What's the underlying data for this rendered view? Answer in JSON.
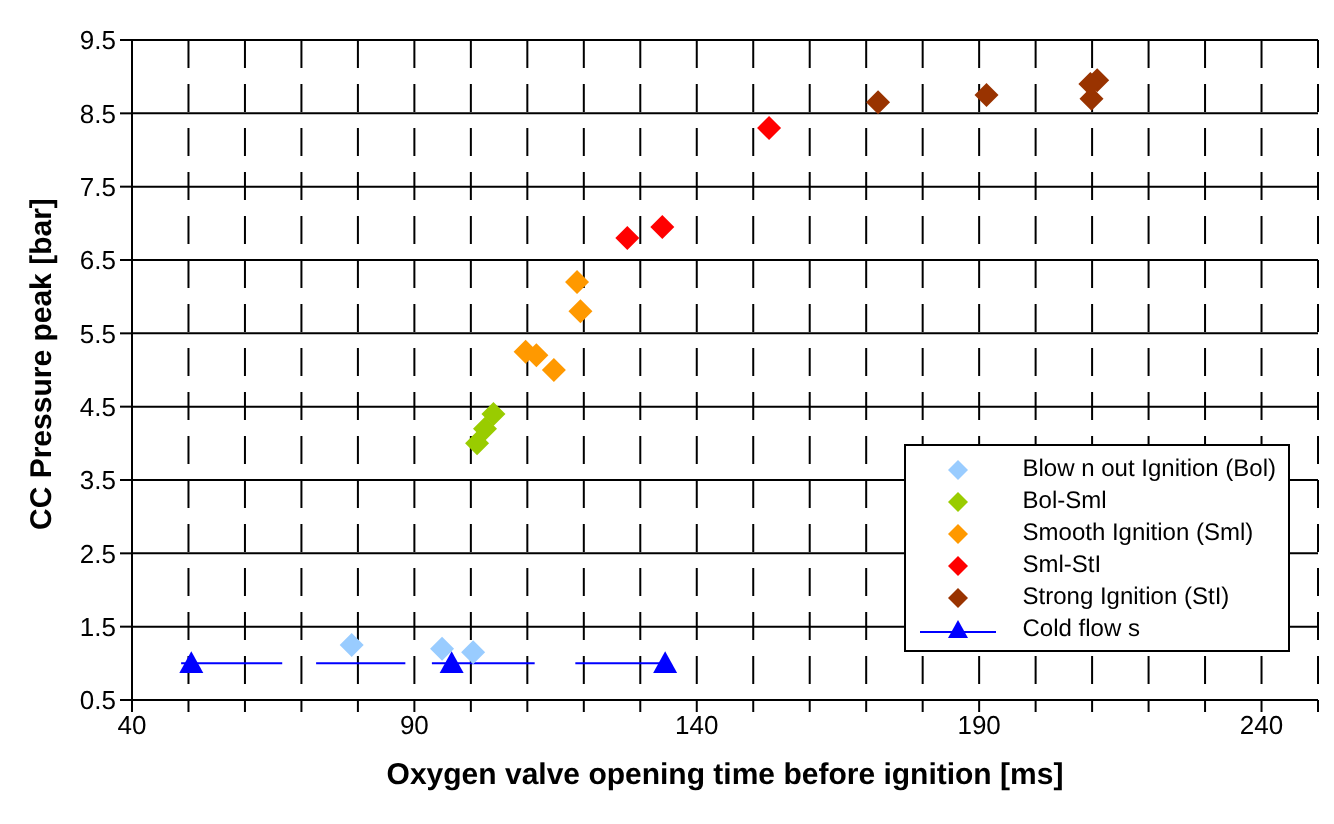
{
  "chart_data": {
    "type": "scatter",
    "xlabel": "Oxygen valve opening time before ignition [ms]",
    "ylabel": "CC Pressure peak [bar]",
    "xlim": [
      40,
      250
    ],
    "xticks": [
      40,
      {
        "value": 50,
        "label": null
      },
      {
        "value": 60,
        "label": null
      },
      {
        "value": 70,
        "label": null
      },
      {
        "value": 80,
        "label": null
      },
      90,
      {
        "value": 100,
        "label": null
      },
      {
        "value": 110,
        "label": null
      },
      {
        "value": 120,
        "label": null
      },
      {
        "value": 130,
        "label": null
      },
      140,
      {
        "value": 150,
        "label": null
      },
      {
        "value": 160,
        "label": null
      },
      {
        "value": 170,
        "label": null
      },
      {
        "value": 180,
        "label": null
      },
      190,
      {
        "value": 200,
        "label": null
      },
      {
        "value": 210,
        "label": null
      },
      {
        "value": 220,
        "label": null
      },
      {
        "value": 230,
        "label": null
      },
      240,
      {
        "value": 250,
        "label": null
      }
    ],
    "ylim": [
      0.5,
      9.5
    ],
    "yticks": [
      0.5,
      1.5,
      2.5,
      3.5,
      4.5,
      5.5,
      6.5,
      7.5,
      8.5,
      9.5
    ],
    "grid": true,
    "legend": "bottom right",
    "marker": "diamond",
    "series": [
      {
        "name": "Blow n out Ignition (Bol)",
        "color": "#99ccff",
        "x": [
          78.9,
          94.9,
          100.4
        ],
        "values": [
          1.25,
          1.2,
          1.15
        ]
      },
      {
        "name": "Bol-Sml",
        "color": "#99cc00",
        "x": [
          104,
          102.5,
          101.1
        ],
        "values": [
          4.4,
          4.2,
          4.0
        ]
      },
      {
        "name": "Smooth Ignition (Sml)",
        "color": "#ff9900",
        "x": [
          118.8,
          119.4,
          109.7,
          111.6,
          114.7
        ],
        "values": [
          6.2,
          5.8,
          5.25,
          5.2,
          5.0
        ]
      },
      {
        "name": "Sml-StI",
        "color": "#ff0000",
        "x": [
          127.7,
          133.9,
          152.8
        ],
        "values": [
          6.8,
          6.95,
          8.3
        ]
      },
      {
        "name": "Strong Ignition (StI)",
        "color": "#993300",
        "x": [
          172.1,
          191.3,
          209.9,
          210.9,
          209.7
        ],
        "values": [
          8.65,
          8.75,
          8.7,
          8.95,
          8.9
        ]
      },
      {
        "type": "line",
        "color": "#0000ff",
        "marker": "none",
        "x": [
          48.7,
          66.6,
          70,
          72.6,
          88.4,
          90,
          93.1,
          111.3,
          115,
          118.5,
          135.3
        ],
        "values": [
          1,
          1,
          null,
          1,
          1,
          null,
          1,
          1,
          null,
          1,
          1
        ]
      },
      {
        "name": "Cold flow s",
        "color": "#0000ff",
        "marker": "triangle",
        "x": [
          50.5,
          96.6,
          134.4
        ],
        "values": [
          1,
          1,
          1
        ]
      }
    ]
  }
}
